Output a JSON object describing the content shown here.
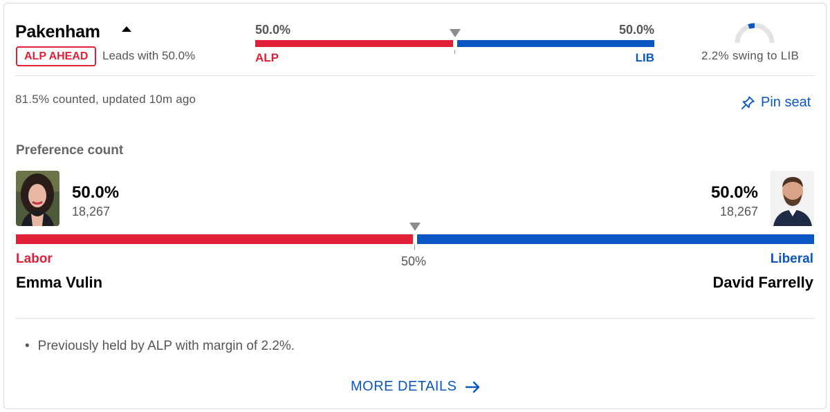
{
  "seat": {
    "name": "Pakenham",
    "status_badge": "ALP AHEAD",
    "leads_text": "Leads with 50.0%"
  },
  "summary_bar": {
    "left_pct": "50.0%",
    "right_pct": "50.0%",
    "left_party": "ALP",
    "right_party": "LIB",
    "left_share": 0.5,
    "right_share": 0.5
  },
  "swing": {
    "text": "2.2% swing to LIB",
    "value": 2.2
  },
  "counted_text": "81.5% counted, updated 10m ago",
  "pin_label": "Pin seat",
  "preference": {
    "label": "Preference count",
    "midpoint_label": "50%",
    "left": {
      "pct": "50.0%",
      "votes": "18,267",
      "party": "Labor",
      "name": "Emma Vulin",
      "share": 0.5
    },
    "right": {
      "pct": "50.0%",
      "votes": "18,267",
      "party": "Liberal",
      "name": "David Farrelly",
      "share": 0.5
    }
  },
  "notes": [
    "Previously held by ALP with margin of 2.2%."
  ],
  "more_details_label": "MORE DETAILS",
  "colors": {
    "alp": "#e11f36",
    "lib": "#0a56c2",
    "marker": "#8c8c8c",
    "gauge_track": "#e3e3e3"
  },
  "icons": {
    "caret": "caret-up-icon",
    "pin": "pushpin-icon",
    "arrow": "arrow-right-icon",
    "marker": "triangle-down-icon"
  }
}
